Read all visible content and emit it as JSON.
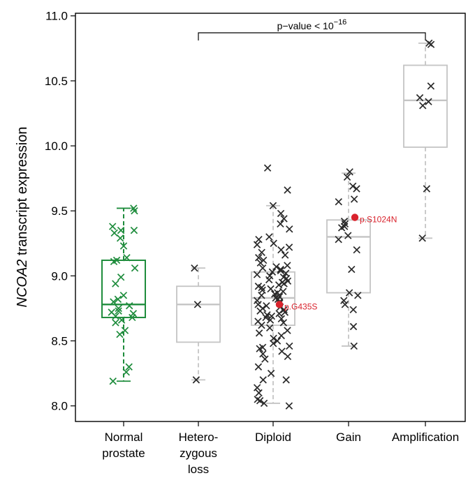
{
  "chart_data": {
    "type": "box",
    "ylabel_italic": "NCOA2",
    "ylabel_rest": " transcript expression",
    "ylim": [
      7.88,
      11.02
    ],
    "yticks": [
      "8.0",
      "8.5",
      "9.0",
      "9.5",
      "10.0",
      "10.5",
      "11.0"
    ],
    "ytick_values": [
      8.0,
      8.5,
      9.0,
      9.5,
      10.0,
      10.5,
      11.0
    ],
    "annotation": {
      "text": "p−value < 10",
      "superscript": "−16",
      "from_group": 1,
      "to_group": 4
    },
    "colors": {
      "normal": "#1e8c3c",
      "box": "#c4c4c4",
      "point": "#2a2a2a",
      "highlight": "#d9232d",
      "axis": "#000000"
    },
    "groups": [
      {
        "label_lines": [
          "Normal",
          "prostate"
        ],
        "color": "normal",
        "whisker_low": 8.19,
        "q1": 8.68,
        "median": 8.78,
        "q3": 9.12,
        "whisker_high": 9.52,
        "points": [
          9.52,
          9.5,
          9.38,
          9.35,
          9.35,
          9.33,
          9.29,
          9.23,
          9.14,
          9.12,
          9.11,
          9.06,
          8.99,
          8.94,
          8.85,
          8.82,
          8.8,
          8.77,
          8.75,
          8.73,
          8.72,
          8.71,
          8.69,
          8.68,
          8.66,
          8.64,
          8.58,
          8.55,
          8.3,
          8.26,
          8.19
        ]
      },
      {
        "label_lines": [
          "Hetero-",
          "zygous",
          "loss"
        ],
        "color": "box",
        "whisker_low": 8.2,
        "q1": 8.49,
        "median": 8.78,
        "q3": 8.92,
        "whisker_high": 9.06,
        "points": [
          9.06,
          8.78,
          8.2
        ]
      },
      {
        "label_lines": [
          "Diploid"
        ],
        "color": "box",
        "whisker_low": 8.02,
        "q1": 8.62,
        "median": 8.83,
        "q3": 9.03,
        "whisker_high": 9.54,
        "points": [
          9.83,
          9.66,
          9.54,
          9.48,
          9.44,
          9.4,
          9.36,
          9.3,
          9.28,
          9.25,
          9.24,
          9.22,
          9.2,
          9.18,
          9.16,
          9.14,
          9.12,
          9.1,
          9.08,
          9.07,
          9.06,
          9.05,
          9.04,
          9.03,
          9.02,
          9.01,
          9.0,
          8.99,
          8.98,
          8.97,
          8.96,
          8.95,
          8.94,
          8.93,
          8.92,
          8.91,
          8.9,
          8.89,
          8.88,
          8.87,
          8.86,
          8.85,
          8.84,
          8.83,
          8.82,
          8.81,
          8.8,
          8.79,
          8.78,
          8.77,
          8.76,
          8.75,
          8.74,
          8.73,
          8.72,
          8.71,
          8.7,
          8.69,
          8.68,
          8.67,
          8.66,
          8.65,
          8.64,
          8.62,
          8.6,
          8.58,
          8.56,
          8.54,
          8.52,
          8.5,
          8.48,
          8.46,
          8.45,
          8.44,
          8.42,
          8.4,
          8.38,
          8.36,
          8.3,
          8.25,
          8.2,
          8.2,
          8.14,
          8.1,
          8.05,
          8.04,
          8.02,
          8.0
        ],
        "highlight": {
          "value": 8.78,
          "label": "p.G435S"
        }
      },
      {
        "label_lines": [
          "Gain"
        ],
        "color": "box",
        "whisker_low": 8.46,
        "q1": 8.87,
        "median": 9.3,
        "q3": 9.43,
        "whisker_high": 9.79,
        "points": [
          9.8,
          9.76,
          9.69,
          9.67,
          9.59,
          9.57,
          9.42,
          9.4,
          9.38,
          9.37,
          9.31,
          9.28,
          9.2,
          9.05,
          8.87,
          8.85,
          8.81,
          8.78,
          8.74,
          8.61,
          8.46
        ],
        "highlight": {
          "value": 9.45,
          "label": "p.S1024N"
        }
      },
      {
        "label_lines": [
          "Amplification"
        ],
        "color": "box",
        "whisker_low": 9.29,
        "q1": 9.99,
        "median": 10.35,
        "q3": 10.62,
        "whisker_high": 10.79,
        "points": [
          10.79,
          10.78,
          10.46,
          10.37,
          10.34,
          10.31,
          9.67,
          9.29
        ]
      }
    ]
  }
}
